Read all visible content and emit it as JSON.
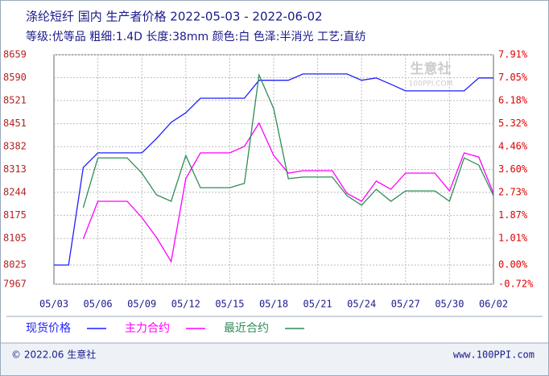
{
  "chart_data": {
    "type": "line",
    "title": "涤纶短纤 国内 生产者价格 2022-05-03 - 2022-06-02",
    "subtitle": "等级:优等品 粗细:1.4D 长度:38mm 颜色:白 色泽:半消光 工艺:直纺",
    "categories": [
      "05/03",
      null,
      null,
      "05/06",
      null,
      null,
      "05/09",
      null,
      null,
      "05/12",
      null,
      null,
      "05/15",
      null,
      null,
      "05/18",
      null,
      null,
      "05/21",
      null,
      null,
      "05/24",
      null,
      null,
      "05/27",
      null,
      null,
      "05/30",
      null,
      null,
      "06/02"
    ],
    "series": [
      {
        "name": "现货价格",
        "color": "#1f1fff",
        "axis": "y",
        "values": [
          8025,
          8025,
          8319,
          8363,
          8363,
          8363,
          8363,
          8406,
          8455,
          8484,
          8528,
          8528,
          8528,
          8528,
          8582,
          8582,
          8582,
          8601,
          8601,
          8601,
          8601,
          8582,
          8589,
          8570,
          8550,
          8550,
          8550,
          8550,
          8550,
          8589,
          8589
        ]
      },
      {
        "name": "主力合约",
        "color": "#ff00ff",
        "axis": "y2",
        "values": [
          null,
          null,
          0.98,
          2.4,
          2.4,
          2.4,
          1.79,
          1.04,
          0.13,
          3.25,
          4.22,
          4.22,
          4.22,
          4.46,
          5.34,
          4.12,
          3.46,
          3.55,
          3.55,
          3.55,
          2.7,
          2.4,
          3.16,
          2.85,
          3.46,
          3.46,
          3.46,
          2.79,
          4.22,
          4.06,
          2.7
        ]
      },
      {
        "name": "最近合约",
        "color": "#2e8b57",
        "axis": "y2",
        "values": [
          null,
          null,
          2.16,
          4.03,
          4.03,
          4.03,
          3.46,
          2.64,
          2.4,
          4.12,
          2.91,
          2.91,
          2.91,
          3.07,
          7.15,
          5.88,
          3.25,
          3.31,
          3.31,
          3.31,
          2.61,
          2.25,
          2.85,
          2.4,
          2.79,
          2.79,
          2.79,
          2.4,
          4.03,
          3.76,
          2.61
        ]
      }
    ],
    "ylim": [
      7967,
      8659
    ],
    "yticks": [
      8659,
      8590,
      8521,
      8451,
      8382,
      8313,
      8244,
      8175,
      8105,
      8025,
      7967
    ],
    "y2lim": [
      -0.72,
      7.91
    ],
    "y2ticks": [
      {
        "value": 7.91,
        "label": "7.91%"
      },
      {
        "value": 7.05,
        "label": "7.05%"
      },
      {
        "value": 6.18,
        "label": "6.18%"
      },
      {
        "value": 5.32,
        "label": "5.32%"
      },
      {
        "value": 4.46,
        "label": "4.46%"
      },
      {
        "value": 3.6,
        "label": "3.60%"
      },
      {
        "value": 2.73,
        "label": "2.73%"
      },
      {
        "value": 1.87,
        "label": "1.87%"
      },
      {
        "value": 1.01,
        "label": "1.01%"
      },
      {
        "value": 0.0,
        "label": "0.00%"
      },
      {
        "value": -0.72,
        "label": "-0.72%"
      }
    ],
    "grid": true,
    "watermark": [
      "生意社",
      "100PPI.COM"
    ],
    "footer_left": "© 2022.06 生意社",
    "footer_right": "www.100PPI.com"
  }
}
